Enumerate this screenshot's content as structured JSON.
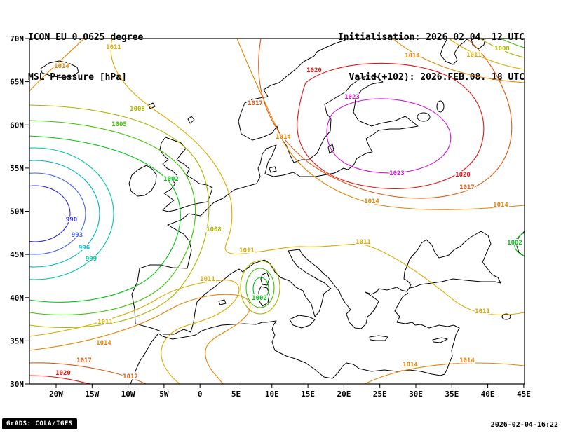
{
  "header": {
    "model": "ICON EU 0.0625 degree",
    "field": "MSL Pressure [hPa]",
    "init": "Initialisation: 2026.02.04. 12 UTC",
    "valid": "Valid(+102): 2026.FEB.08. 18 UTC"
  },
  "footer": {
    "brand": "GrADS: COLA/IGES",
    "timestamp": "2026-02-04-16:22"
  },
  "axes": {
    "lat_ticks": [
      [
        "70N",
        55
      ],
      [
        "65N",
        116.6
      ],
      [
        "60N",
        178.3
      ],
      [
        "55N",
        239.9
      ],
      [
        "50N",
        301.5
      ],
      [
        "45N",
        363.1
      ],
      [
        "40N",
        424.8
      ],
      [
        "35N",
        486.4
      ],
      [
        "30N",
        548
      ]
    ],
    "lon_ticks": [
      [
        "20W",
        80
      ],
      [
        "15W",
        131.3
      ],
      [
        "10W",
        182.6
      ],
      [
        "5W",
        233.9
      ],
      [
        "0",
        285.2
      ],
      [
        "5E",
        336.5
      ],
      [
        "10E",
        387.8
      ],
      [
        "15E",
        439.1
      ],
      [
        "20E",
        490.4
      ],
      [
        "25E",
        541.7
      ],
      [
        "30E",
        593
      ],
      [
        "35E",
        644.3
      ],
      [
        "40E",
        695.6
      ],
      [
        "45E",
        746.9
      ]
    ]
  },
  "chart_data": {
    "type": "contour",
    "variable": "MSL Pressure",
    "units": "hPa",
    "model": "ICON EU 0.0625 degree",
    "initialisation": "2026.02.04. 12 UTC",
    "valid": "2026.FEB.08. 18 UTC",
    "lead_hours": 102,
    "contour_interval_hpa": 3,
    "lat_range_deg_n": [
      30,
      70
    ],
    "lon_range_deg": [
      -25,
      45
    ],
    "levels": [
      {
        "value": 990,
        "color": "#2d2dd2"
      },
      {
        "value": 993,
        "color": "#4664f0"
      },
      {
        "value": 996,
        "color": "#00b4c8"
      },
      {
        "value": 999,
        "color": "#00c8a0"
      },
      {
        "value": 1002,
        "color": "#00c314"
      },
      {
        "value": 1005,
        "color": "#3cc300"
      },
      {
        "value": 1008,
        "color": "#aab400"
      },
      {
        "value": 1011,
        "color": "#dcaa00"
      },
      {
        "value": 1014,
        "color": "#e68200"
      },
      {
        "value": 1017,
        "color": "#dc5a14"
      },
      {
        "value": 1020,
        "color": "#e61414"
      },
      {
        "value": 1023,
        "color": "#d214d2"
      }
    ],
    "labels": [
      [
        990,
        102,
        316
      ],
      [
        993,
        110,
        338
      ],
      [
        996,
        120,
        356
      ],
      [
        999,
        130,
        372
      ],
      [
        1002,
        244,
        258
      ],
      [
        1005,
        170,
        180
      ],
      [
        1008,
        196,
        158
      ],
      [
        1008,
        305,
        330
      ],
      [
        1011,
        162,
        70
      ],
      [
        1014,
        88,
        97
      ],
      [
        1017,
        364,
        150
      ],
      [
        1020,
        448,
        103
      ],
      [
        1023,
        502,
        141
      ],
      [
        1023,
        566,
        250
      ],
      [
        1020,
        660,
        252
      ],
      [
        1017,
        666,
        270
      ],
      [
        1014,
        404,
        198
      ],
      [
        1014,
        530,
        290
      ],
      [
        1014,
        714,
        295
      ],
      [
        1014,
        588,
        82
      ],
      [
        1011,
        676,
        81
      ],
      [
        1008,
        716,
        72
      ],
      [
        1002,
        734,
        349
      ],
      [
        1011,
        352,
        360
      ],
      [
        1011,
        518,
        348
      ],
      [
        1011,
        688,
        447
      ],
      [
        1002,
        370,
        428
      ],
      [
        1011,
        150,
        462
      ],
      [
        1011,
        296,
        401
      ],
      [
        1014,
        148,
        492
      ],
      [
        1014,
        585,
        523
      ],
      [
        1014,
        666,
        517
      ],
      [
        1017,
        120,
        517
      ],
      [
        1017,
        186,
        540
      ],
      [
        1020,
        90,
        535
      ]
    ],
    "highs_lows": [
      {
        "type": "L",
        "region": "Atlantic west of Ireland",
        "value_hpa": 990
      },
      {
        "type": "H",
        "region": "Baltic / NE Europe",
        "value_hpa": 1023
      },
      {
        "type": "L",
        "region": "W Mediterranean near Sardinia",
        "value_hpa": 1002
      },
      {
        "type": "H",
        "region": "NW Africa / Morocco",
        "value_hpa": 1020
      }
    ]
  }
}
